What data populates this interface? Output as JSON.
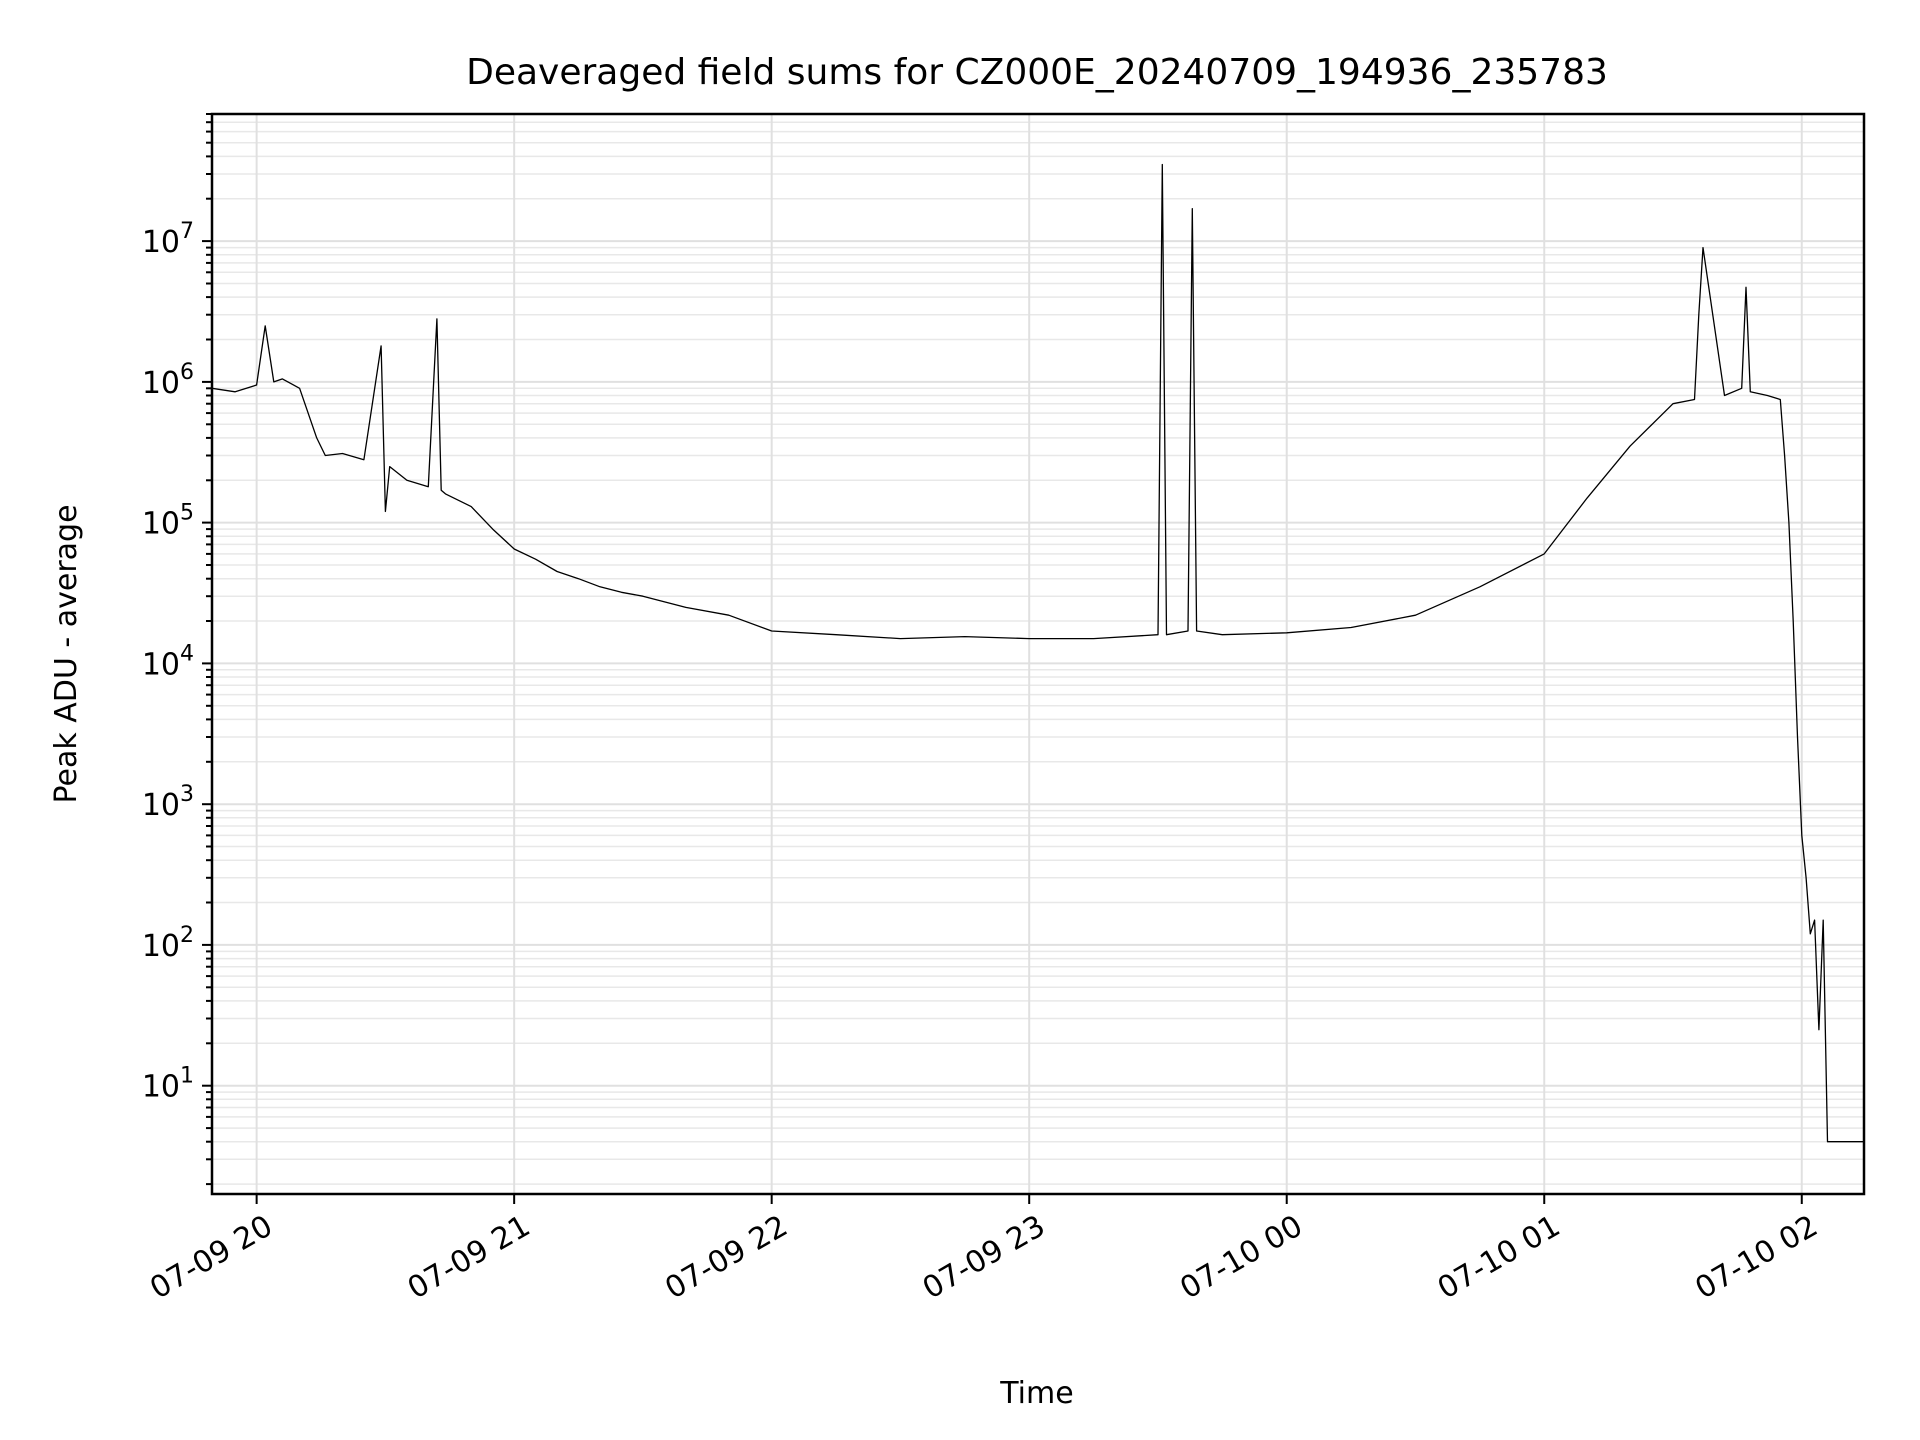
{
  "chart_data": {
    "type": "line",
    "title": "Deaveraged field sums for CZ000E_20240709_194936_235783",
    "xlabel": "Time",
    "ylabel": "Peak ADU - average",
    "y_scale": "log",
    "ylim": [
      1.7,
      80000000
    ],
    "xlim": [
      "2024-07-09 19:49:36",
      "2024-07-10 02:14:30"
    ],
    "x_ticks": [
      {
        "value": "2024-07-09 20:00",
        "label": "07-09 20"
      },
      {
        "value": "2024-07-09 21:00",
        "label": "07-09 21"
      },
      {
        "value": "2024-07-09 22:00",
        "label": "07-09 22"
      },
      {
        "value": "2024-07-09 23:00",
        "label": "07-09 23"
      },
      {
        "value": "2024-07-10 00:00",
        "label": "07-10 00"
      },
      {
        "value": "2024-07-10 01:00",
        "label": "07-10 01"
      },
      {
        "value": "2024-07-10 02:00",
        "label": "07-10 02"
      }
    ],
    "y_ticks": [
      {
        "value": 10,
        "base": "10",
        "exp": "1"
      },
      {
        "value": 100,
        "base": "10",
        "exp": "2"
      },
      {
        "value": 1000,
        "base": "10",
        "exp": "3"
      },
      {
        "value": 10000,
        "base": "10",
        "exp": "4"
      },
      {
        "value": 100000,
        "base": "10",
        "exp": "5"
      },
      {
        "value": 1000000,
        "base": "10",
        "exp": "6"
      },
      {
        "value": 10000000,
        "base": "10",
        "exp": "7"
      }
    ],
    "grid": "major and minor",
    "line_color": "#000000",
    "series": [
      {
        "x": [
          "2024-07-09 19:49:36",
          "2024-07-09 19:55",
          "2024-07-09 20:00",
          "2024-07-09 20:02",
          "2024-07-09 20:04",
          "2024-07-09 20:06",
          "2024-07-09 20:10",
          "2024-07-09 20:14",
          "2024-07-09 20:16",
          "2024-07-09 20:20",
          "2024-07-09 20:25",
          "2024-07-09 20:29",
          "2024-07-09 20:30",
          "2024-07-09 20:31",
          "2024-07-09 20:35",
          "2024-07-09 20:40",
          "2024-07-09 20:42",
          "2024-07-09 20:43",
          "2024-07-09 20:44",
          "2024-07-09 20:50",
          "2024-07-09 20:55",
          "2024-07-09 21:00",
          "2024-07-09 21:05",
          "2024-07-09 21:10",
          "2024-07-09 21:15",
          "2024-07-09 21:20",
          "2024-07-09 21:25",
          "2024-07-09 21:30",
          "2024-07-09 21:40",
          "2024-07-09 21:50",
          "2024-07-09 22:00",
          "2024-07-09 22:15",
          "2024-07-09 22:30",
          "2024-07-09 22:45",
          "2024-07-09 23:00",
          "2024-07-09 23:15",
          "2024-07-09 23:30",
          "2024-07-09 23:31",
          "2024-07-09 23:32",
          "2024-07-09 23:37",
          "2024-07-09 23:38",
          "2024-07-09 23:39",
          "2024-07-09 23:45",
          "2024-07-10 00:00",
          "2024-07-10 00:15",
          "2024-07-10 00:30",
          "2024-07-10 00:45",
          "2024-07-10 01:00",
          "2024-07-10 01:10",
          "2024-07-10 01:20",
          "2024-07-10 01:30",
          "2024-07-10 01:35",
          "2024-07-10 01:36",
          "2024-07-10 01:37",
          "2024-07-10 01:42",
          "2024-07-10 01:46",
          "2024-07-10 01:47",
          "2024-07-10 01:48",
          "2024-07-10 01:52",
          "2024-07-10 01:55",
          "2024-07-10 01:56",
          "2024-07-10 01:57",
          "2024-07-10 01:58",
          "2024-07-10 01:59",
          "2024-07-10 02:00",
          "2024-07-10 02:01",
          "2024-07-10 02:02",
          "2024-07-10 02:03",
          "2024-07-10 02:04",
          "2024-07-10 02:05",
          "2024-07-10 02:06",
          "2024-07-10 02:14:30"
        ],
        "values": [
          900000,
          850000,
          950000,
          2500000,
          1000000,
          1050000,
          900000,
          400000,
          300000,
          310000,
          280000,
          1800000,
          120000,
          250000,
          200000,
          180000,
          2800000,
          170000,
          160000,
          130000,
          90000,
          65000,
          55000,
          45000,
          40000,
          35000,
          32000,
          30000,
          25000,
          22000,
          17000,
          16000,
          15000,
          15500,
          15000,
          15000,
          16000,
          35000000,
          16000,
          17000,
          17000000,
          17000,
          16000,
          16500,
          18000,
          22000,
          35000,
          60000,
          150000,
          350000,
          700000,
          750000,
          3000000,
          9000000,
          800000,
          900000,
          4700000,
          850000,
          800000,
          750000,
          300000,
          100000,
          20000,
          3000,
          600,
          300,
          120,
          150,
          25,
          150,
          4,
          4
        ]
      }
    ]
  }
}
